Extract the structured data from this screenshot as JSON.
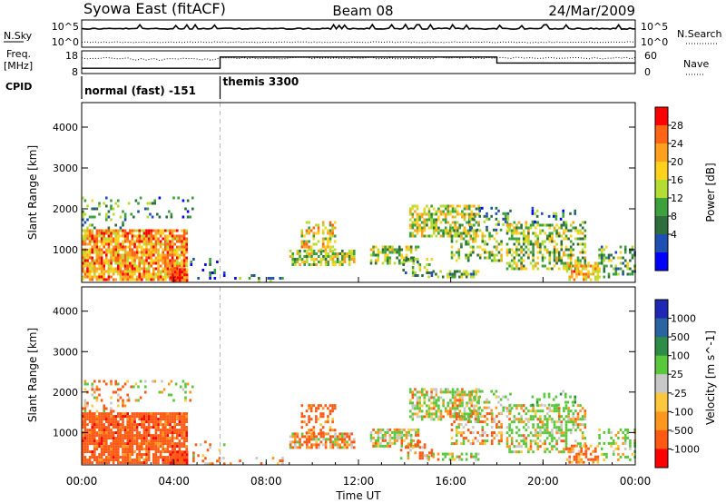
{
  "header": {
    "station": "Syowa East (fitACF)",
    "beam": "Beam 08",
    "date": "24/Mar/2009"
  },
  "top_panels": {
    "nsky_label": "N.Sky",
    "nsky_ticks": [
      "10^5",
      "10^0"
    ],
    "nsearch_label": "N.Search",
    "freq_label_1": "Freq.",
    "freq_label_2": "[MHz]",
    "freq_ticks": [
      "18",
      "8"
    ],
    "nave_ticks": [
      "60",
      "0"
    ],
    "nave_label": "Nave",
    "cpid_label": "CPID",
    "modes": [
      {
        "name": "normal (fast) -151",
        "start_h": 0,
        "end_h": 6
      },
      {
        "name": "themis 3300",
        "start_h": 6,
        "end_h": 24
      }
    ],
    "freq_steps": [
      {
        "start_h": 0,
        "end_h": 6,
        "level": 0.22
      },
      {
        "start_h": 6,
        "end_h": 18,
        "level": 0.78
      },
      {
        "start_h": 18,
        "end_h": 24,
        "level": 0.48
      }
    ]
  },
  "x_axis": {
    "label": "Time UT",
    "ticks": [
      "00:00",
      "04:00",
      "08:00",
      "12:00",
      "16:00",
      "20:00",
      "00:00"
    ]
  },
  "power_panel": {
    "ylabel": "Slant Range [km]",
    "yticks": [
      "4000",
      "3000",
      "2000",
      "1000"
    ],
    "cbar_label": "Power [dB]",
    "cbar_ticks": [
      "28",
      "24",
      "20",
      "16",
      "12",
      "8",
      "4"
    ],
    "cbar_colors": [
      "#0000ff",
      "#1e50b4",
      "#2d6e3c",
      "#3ca03c",
      "#b4dc32",
      "#ffd21e",
      "#ffa01e",
      "#ff6414",
      "#ff0000"
    ]
  },
  "velocity_panel": {
    "ylabel": "Slant Range [km]",
    "yticks": [
      "4000",
      "3000",
      "2000",
      "1000"
    ],
    "cbar_label": "Velocity [m s^-1]",
    "cbar_ticks": [
      "1000",
      "500",
      "100",
      "25",
      "-25",
      "-100",
      "-500",
      "-1000"
    ],
    "cbar_colors": [
      "#1e28b4",
      "#2864a0",
      "#2d8c46",
      "#5ac83c",
      "#c8c8c8",
      "#ffc83c",
      "#ff961e",
      "#ff5a14",
      "#ff0000"
    ]
  },
  "chart_data": {
    "type": "heatmap",
    "x_unit": "hours UT",
    "xlim": [
      0,
      24
    ],
    "ylim": [
      200,
      4600
    ],
    "y_unit": "km",
    "power_db_range": [
      0,
      30
    ],
    "velocity_range": [
      -1000,
      1000
    ],
    "clusters": [
      {
        "x0": 0.0,
        "x1": 4.6,
        "y0": 250,
        "y1": 1500,
        "density": 0.85,
        "power": 22,
        "velocity": -300
      },
      {
        "x0": 0.0,
        "x1": 2.0,
        "y0": 1500,
        "y1": 2300,
        "density": 0.25,
        "power": 10,
        "velocity": -100
      },
      {
        "x0": 2.0,
        "x1": 4.8,
        "y0": 1800,
        "y1": 2300,
        "density": 0.15,
        "power": 8,
        "velocity": 50
      },
      {
        "x0": 3.8,
        "x1": 4.6,
        "y0": 250,
        "y1": 550,
        "density": 0.9,
        "power": 26,
        "velocity": -400
      },
      {
        "x0": 4.6,
        "x1": 6.2,
        "y0": 250,
        "y1": 800,
        "density": 0.12,
        "power": 6,
        "velocity": -50
      },
      {
        "x0": 6.0,
        "x1": 9.0,
        "y0": 250,
        "y1": 400,
        "density": 0.15,
        "power": 8,
        "velocity": -150
      },
      {
        "x0": 9.0,
        "x1": 11.8,
        "y0": 650,
        "y1": 1000,
        "density": 0.7,
        "power": 15,
        "velocity": -80
      },
      {
        "x0": 9.5,
        "x1": 11.0,
        "y0": 1000,
        "y1": 1700,
        "density": 0.45,
        "power": 18,
        "velocity": -250
      },
      {
        "x0": 12.5,
        "x1": 14.6,
        "y0": 650,
        "y1": 1100,
        "density": 0.55,
        "power": 14,
        "velocity": 60
      },
      {
        "x0": 13.8,
        "x1": 15.2,
        "y0": 350,
        "y1": 800,
        "density": 0.3,
        "power": 12,
        "velocity": -120
      },
      {
        "x0": 14.2,
        "x1": 17.2,
        "y0": 1300,
        "y1": 2100,
        "density": 0.6,
        "power": 16,
        "velocity": 80
      },
      {
        "x0": 16.0,
        "x1": 18.2,
        "y0": 700,
        "y1": 1500,
        "density": 0.4,
        "power": 14,
        "velocity": -60
      },
      {
        "x0": 16.8,
        "x1": 18.6,
        "y0": 1500,
        "y1": 2050,
        "density": 0.25,
        "power": 9,
        "velocity": 200
      },
      {
        "x0": 15.0,
        "x1": 17.2,
        "y0": 300,
        "y1": 500,
        "density": 0.5,
        "power": 12,
        "velocity": 100
      },
      {
        "x0": 18.4,
        "x1": 21.8,
        "y0": 500,
        "y1": 1700,
        "density": 0.5,
        "power": 14,
        "velocity": 120
      },
      {
        "x0": 19.5,
        "x1": 21.4,
        "y0": 1700,
        "y1": 2050,
        "density": 0.25,
        "power": 8,
        "velocity": 300
      },
      {
        "x0": 21.0,
        "x1": 22.4,
        "y0": 250,
        "y1": 700,
        "density": 0.55,
        "power": 20,
        "velocity": -200
      },
      {
        "x0": 22.4,
        "x1": 24.0,
        "y0": 300,
        "y1": 1100,
        "density": 0.35,
        "power": 12,
        "velocity": 150
      }
    ]
  }
}
